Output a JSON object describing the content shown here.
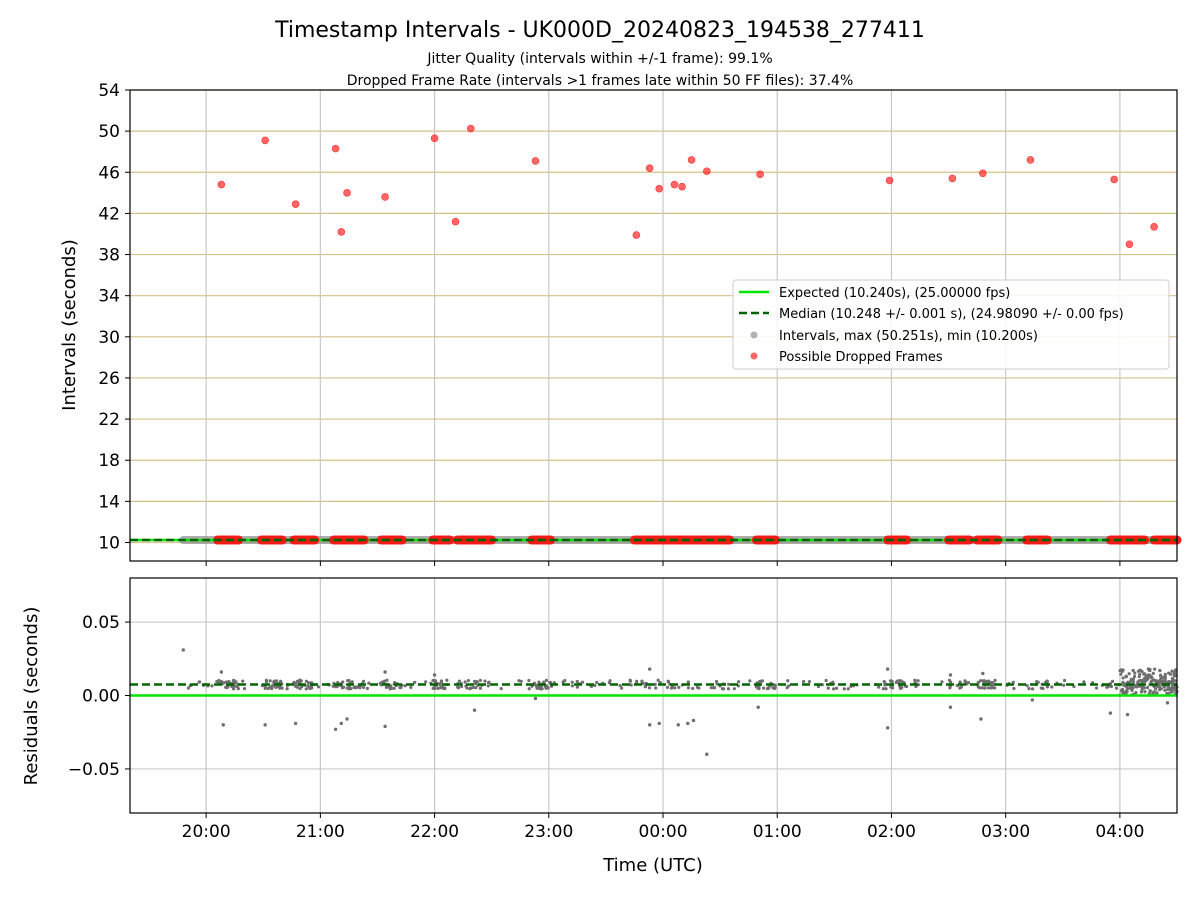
{
  "chart_data": [
    {
      "type": "scatter",
      "panel": "intervals",
      "title": "Timestamp Intervals - UK000D_20240823_194538_277411",
      "subtitle_line1": "Jitter Quality (intervals within +/-1 frame): 99.1%",
      "subtitle_line2": "Dropped Frame Rate (intervals >1 frames late within 50 FF files): 37.4%",
      "xlabel": "",
      "ylabel": "Intervals (seconds)",
      "xlim": [
        "19:20",
        "04:30"
      ],
      "ylim": [
        8.2,
        54
      ],
      "y_ticks": [
        "10",
        "14",
        "18",
        "22",
        "26",
        "30",
        "34",
        "38",
        "42",
        "46",
        "50",
        "54"
      ],
      "grid": "on",
      "legend": {
        "placement": "center-right",
        "entries": [
          "Expected (10.240s), (25.00000 fps)",
          "Median (10.248 +/- 0.001 s), (24.98090 +/- 0.00 fps)",
          "Intervals, max (50.251s), min (10.200s)",
          "Possible Dropped Frames"
        ]
      },
      "expected_value": 10.24,
      "median_value": 10.248,
      "intervals_range": [
        "19:48",
        "04:30"
      ],
      "dropped_frames_high": [
        [
          "20:08",
          44.8
        ],
        [
          "20:31",
          49.1
        ],
        [
          "20:47",
          42.9
        ],
        [
          "21:08",
          48.3
        ],
        [
          "21:11",
          40.2
        ],
        [
          "21:14",
          44.0
        ],
        [
          "21:34",
          43.6
        ],
        [
          "22:00",
          49.3
        ],
        [
          "22:11",
          41.2
        ],
        [
          "22:19",
          50.25
        ],
        [
          "22:53",
          47.1
        ],
        [
          "23:46",
          39.9
        ],
        [
          "23:53",
          46.4
        ],
        [
          "23:58",
          44.4
        ],
        [
          "00:06",
          44.8
        ],
        [
          "00:10",
          44.6
        ],
        [
          "00:15",
          47.2
        ],
        [
          "00:23",
          46.1
        ],
        [
          "00:51",
          45.8
        ],
        [
          "01:59",
          45.2
        ],
        [
          "02:32",
          45.4
        ],
        [
          "02:48",
          45.9
        ],
        [
          "03:13",
          47.2
        ],
        [
          "03:57",
          45.3
        ],
        [
          "04:05",
          39.0
        ],
        [
          "04:18",
          40.7
        ]
      ],
      "dropped_frames_baseline_runs": [
        [
          "20:06",
          "20:17"
        ],
        [
          "20:29",
          "20:40"
        ],
        [
          "20:46",
          "20:57"
        ],
        [
          "21:07",
          "21:23"
        ],
        [
          "21:32",
          "21:43"
        ],
        [
          "21:59",
          "22:08"
        ],
        [
          "22:12",
          "22:30"
        ],
        [
          "22:51",
          "23:01"
        ],
        [
          "23:45",
          "00:35"
        ],
        [
          "00:49",
          "00:59"
        ],
        [
          "01:58",
          "02:08"
        ],
        [
          "02:30",
          "02:41"
        ],
        [
          "02:45",
          "02:56"
        ],
        [
          "03:11",
          "03:22"
        ],
        [
          "03:55",
          "04:13"
        ],
        [
          "04:18",
          "04:30"
        ]
      ]
    },
    {
      "type": "scatter",
      "panel": "residuals",
      "xlabel": "Time (UTC)",
      "ylabel": "Residuals (seconds)",
      "xlim": [
        "19:20",
        "04:30"
      ],
      "ylim": [
        -0.08,
        0.08
      ],
      "y_ticks": [
        "0.05",
        "0.00",
        "−0.05"
      ],
      "x_ticks": [
        "20:00",
        "21:00",
        "22:00",
        "23:00",
        "00:00",
        "01:00",
        "02:00",
        "03:00",
        "04:00"
      ],
      "grid": "on",
      "expected_residual": 0.0,
      "median_residual": 0.0075,
      "outliers": [
        [
          "19:48",
          0.031
        ],
        [
          "20:08",
          0.016
        ],
        [
          "20:09",
          -0.02
        ],
        [
          "20:31",
          -0.02
        ],
        [
          "20:47",
          -0.019
        ],
        [
          "21:08",
          -0.023
        ],
        [
          "21:11",
          -0.019
        ],
        [
          "21:14",
          -0.016
        ],
        [
          "21:34",
          -0.021
        ],
        [
          "21:34",
          0.016
        ],
        [
          "22:00",
          0.014
        ],
        [
          "22:21",
          -0.01
        ],
        [
          "22:53",
          -0.002
        ],
        [
          "23:53",
          -0.02
        ],
        [
          "23:58",
          -0.019
        ],
        [
          "23:53",
          0.018
        ],
        [
          "00:08",
          -0.02
        ],
        [
          "00:13",
          -0.019
        ],
        [
          "00:16",
          -0.017
        ],
        [
          "00:23",
          -0.04
        ],
        [
          "00:50",
          -0.008
        ],
        [
          "01:58",
          -0.022
        ],
        [
          "01:58",
          0.018
        ],
        [
          "02:31",
          -0.008
        ],
        [
          "02:31",
          0.014
        ],
        [
          "02:47",
          -0.016
        ],
        [
          "02:48",
          0.015
        ],
        [
          "03:14",
          -0.003
        ],
        [
          "03:55",
          -0.012
        ],
        [
          "04:04",
          -0.013
        ],
        [
          "04:25",
          -0.005
        ],
        [
          "04:07",
          0.017
        ],
        [
          "04:15",
          0.018
        ],
        [
          "04:21",
          0.017
        ]
      ]
    }
  ]
}
